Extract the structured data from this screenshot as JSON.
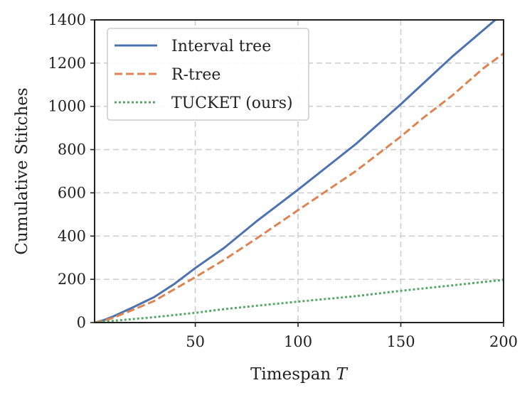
{
  "chart_data": {
    "type": "line",
    "title": "",
    "xlabel": "Timespan",
    "xlabel_var": "T",
    "ylabel": "Cumulative Stitches",
    "xlim": [
      1,
      200
    ],
    "ylim": [
      0,
      1400
    ],
    "xticks": [
      50,
      100,
      150,
      200
    ],
    "yticks": [
      0,
      200,
      400,
      600,
      800,
      1000,
      1200,
      1400
    ],
    "grid": true,
    "legend_position": "top-left",
    "series": [
      {
        "name": "Interval tree",
        "color": "#4c72b0",
        "style": "solid",
        "x": [
          1,
          5,
          10,
          20,
          30,
          40,
          50,
          64,
          80,
          100,
          128,
          150,
          175,
          196
        ],
        "y": [
          0,
          10,
          28,
          72,
          118,
          180,
          252,
          345,
          470,
          615,
          825,
          1010,
          1230,
          1400
        ]
      },
      {
        "name": "R-tree",
        "color": "#dd8452",
        "style": "dashed",
        "x": [
          1,
          5,
          10,
          20,
          30,
          40,
          50,
          64,
          80,
          100,
          128,
          150,
          160,
          175,
          190,
          200
        ],
        "y": [
          0,
          8,
          22,
          60,
          100,
          155,
          210,
          290,
          390,
          520,
          700,
          860,
          940,
          1050,
          1175,
          1245
        ]
      },
      {
        "name": "TUCKET (ours)",
        "color": "#55a868",
        "style": "dotted",
        "x": [
          1,
          10,
          30,
          50,
          64,
          80,
          100,
          128,
          150,
          175,
          200
        ],
        "y": [
          0,
          8,
          25,
          45,
          62,
          78,
          97,
          122,
          147,
          172,
          198
        ]
      }
    ]
  }
}
